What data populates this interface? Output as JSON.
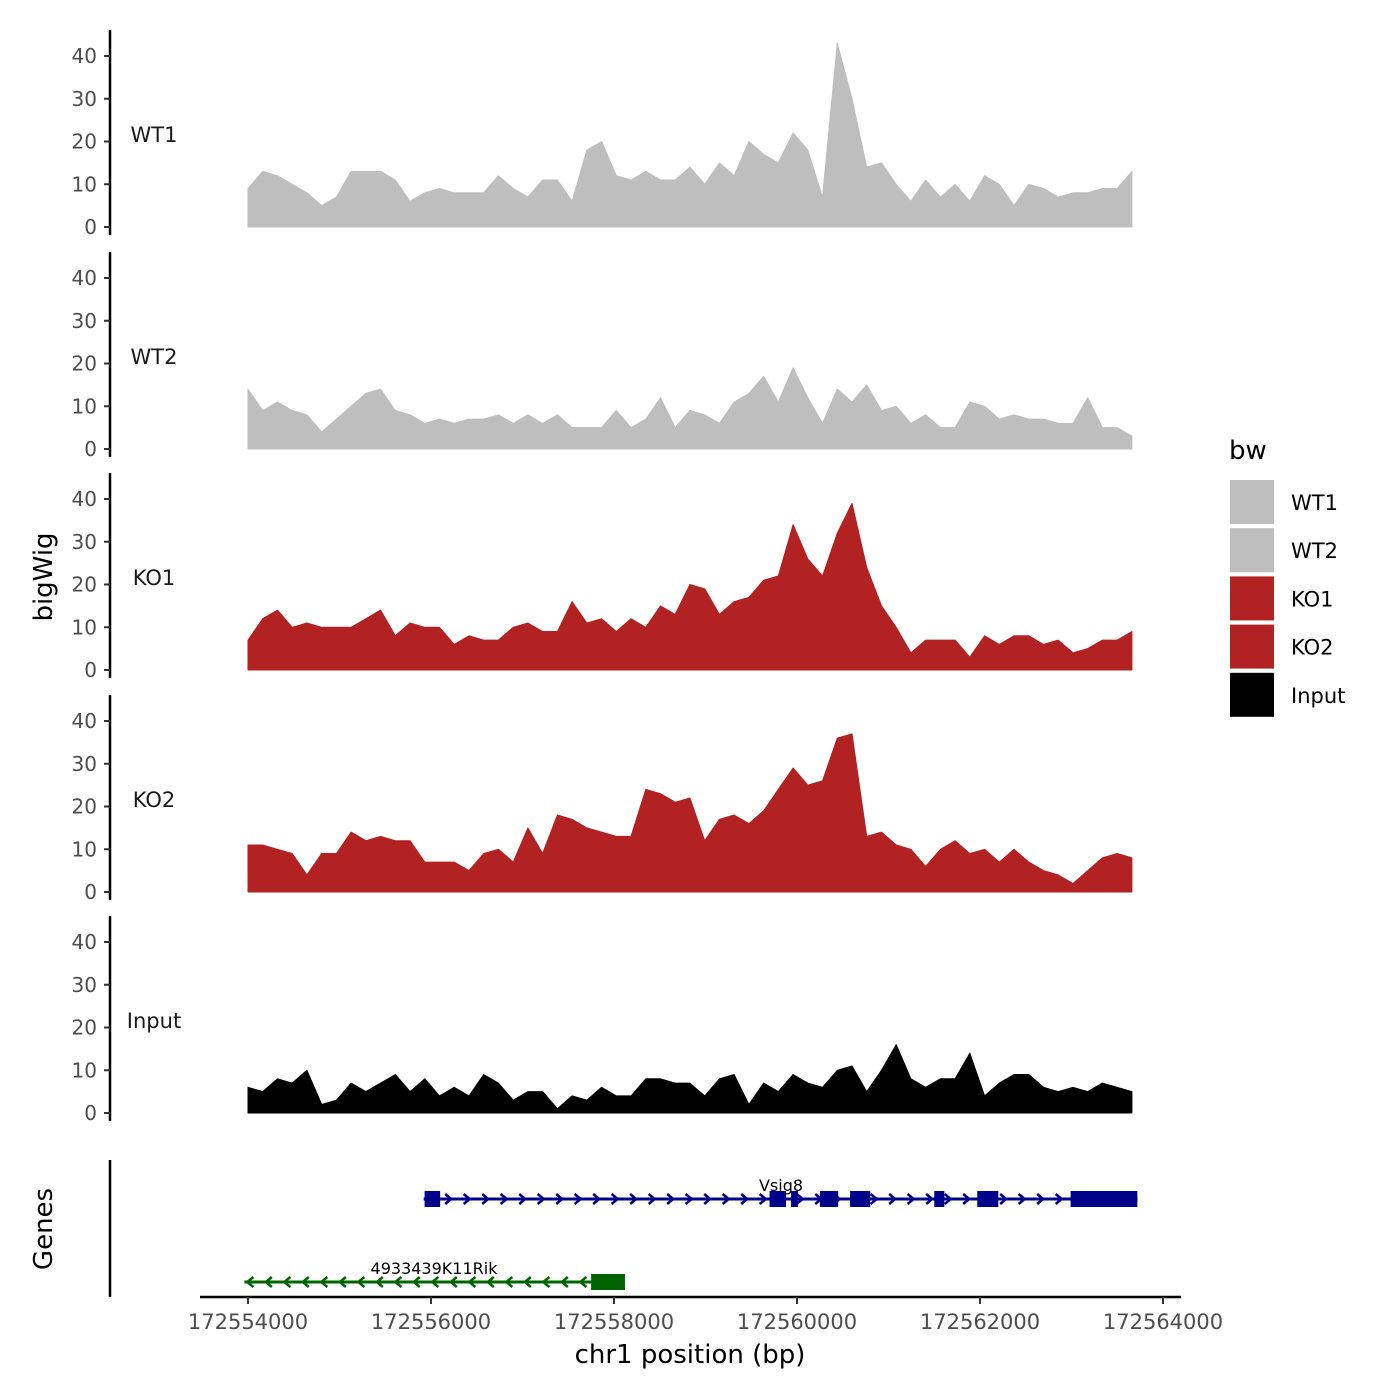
{
  "chart_data": {
    "type": "area",
    "ylabel": "bigWig",
    "xlabel": "chr1 position (bp)",
    "genes_label": "Genes",
    "xlim": [
      172554000,
      172564000
    ],
    "ylim": [
      0,
      44
    ],
    "x_ticks": [
      172554000,
      172556000,
      172558000,
      172560000,
      172562000,
      172564000
    ],
    "x_tick_labels": [
      "172554000",
      "172556000",
      "172558000",
      "172560000",
      "172562000",
      "172564000"
    ],
    "y_ticks": [
      0,
      10,
      20,
      30,
      40
    ],
    "y_tick_labels": [
      "0",
      "10",
      "20",
      "30",
      "40"
    ],
    "x_start": 172554000,
    "x_step": 161,
    "series": [
      {
        "name": "WT1",
        "color": "#bebebe",
        "values": [
          9,
          13,
          12,
          10,
          8,
          5,
          7,
          13,
          13,
          13,
          11,
          6,
          8,
          9,
          8,
          8,
          8,
          12,
          9,
          7,
          11,
          11,
          6,
          18,
          20,
          12,
          11,
          13,
          11,
          11,
          14,
          10,
          15,
          12,
          20,
          17,
          15,
          22,
          18,
          7,
          43,
          30,
          14,
          15,
          10,
          6,
          11,
          7,
          10,
          6,
          12,
          10,
          5,
          10,
          9,
          7,
          8,
          8,
          9,
          9,
          13
        ]
      },
      {
        "name": "WT2",
        "color": "#bebebe",
        "values": [
          14,
          9,
          11,
          9,
          8,
          4,
          7,
          10,
          13,
          14,
          9,
          8,
          6,
          7,
          6,
          7,
          7,
          8,
          6,
          8,
          6,
          8,
          5,
          5,
          5,
          9,
          5,
          7,
          12,
          5,
          9,
          8,
          6,
          11,
          13,
          17,
          11,
          19,
          12,
          6,
          14,
          11,
          15,
          9,
          10,
          6,
          8,
          5,
          5,
          11,
          10,
          7,
          8,
          7,
          7,
          6,
          6,
          12,
          5,
          5,
          3
        ]
      },
      {
        "name": "KO1",
        "color": "#b22222",
        "values": [
          7,
          12,
          14,
          10,
          11,
          10,
          10,
          10,
          12,
          14,
          8,
          11,
          10,
          10,
          6,
          8,
          7,
          7,
          10,
          11,
          9,
          9,
          16,
          11,
          12,
          9,
          12,
          10,
          15,
          13,
          20,
          19,
          13,
          16,
          17,
          21,
          22,
          34,
          26,
          22,
          32,
          39,
          24,
          15,
          10,
          4,
          7,
          7,
          7,
          3,
          8,
          6,
          8,
          8,
          6,
          7,
          4,
          5,
          7,
          7,
          9
        ]
      },
      {
        "name": "KO2",
        "color": "#b22222",
        "values": [
          11,
          11,
          10,
          9,
          4,
          9,
          9,
          14,
          12,
          13,
          12,
          12,
          7,
          7,
          7,
          5,
          9,
          10,
          7,
          15,
          9,
          18,
          17,
          15,
          14,
          13,
          13,
          24,
          23,
          21,
          22,
          12,
          17,
          18,
          16,
          19,
          24,
          29,
          25,
          26,
          36,
          37,
          13,
          14,
          11,
          10,
          6,
          10,
          12,
          9,
          10,
          7,
          10,
          7,
          5,
          4,
          2,
          5,
          8,
          9,
          8
        ]
      },
      {
        "name": "Input",
        "color": "#000000",
        "values": [
          6,
          5,
          8,
          7,
          10,
          2,
          3,
          7,
          5,
          7,
          9,
          5,
          8,
          4,
          6,
          4,
          9,
          7,
          3,
          5,
          5,
          1,
          4,
          3,
          6,
          4,
          4,
          8,
          8,
          7,
          7,
          4,
          8,
          9,
          2,
          7,
          5,
          9,
          7,
          6,
          10,
          11,
          5,
          10,
          16,
          8,
          6,
          8,
          8,
          14,
          4,
          7,
          9,
          9,
          6,
          5,
          6,
          5,
          7,
          6,
          5
        ]
      }
    ],
    "legend": {
      "title": "bw",
      "position": "right",
      "entries": [
        "WT1",
        "WT2",
        "KO1",
        "KO2",
        "Input"
      ]
    },
    "genes": [
      {
        "name": "Vsig8",
        "strand": "+",
        "color": "#00008b",
        "start": 172555920,
        "end": 172563720,
        "exons": [
          [
            172555930,
            172556100
          ],
          [
            172559700,
            172559880
          ],
          [
            172559935,
            172560010
          ],
          [
            172560250,
            172560450
          ],
          [
            172560580,
            172560800
          ],
          [
            172561500,
            172561610
          ],
          [
            172561970,
            172562200
          ],
          [
            172562990,
            172563720
          ]
        ]
      },
      {
        "name": "4933439K11Rik",
        "strand": "-",
        "color": "#006400",
        "start": 172553960,
        "end": 172558120,
        "exons": [
          [
            172557750,
            172558120
          ]
        ]
      }
    ]
  }
}
